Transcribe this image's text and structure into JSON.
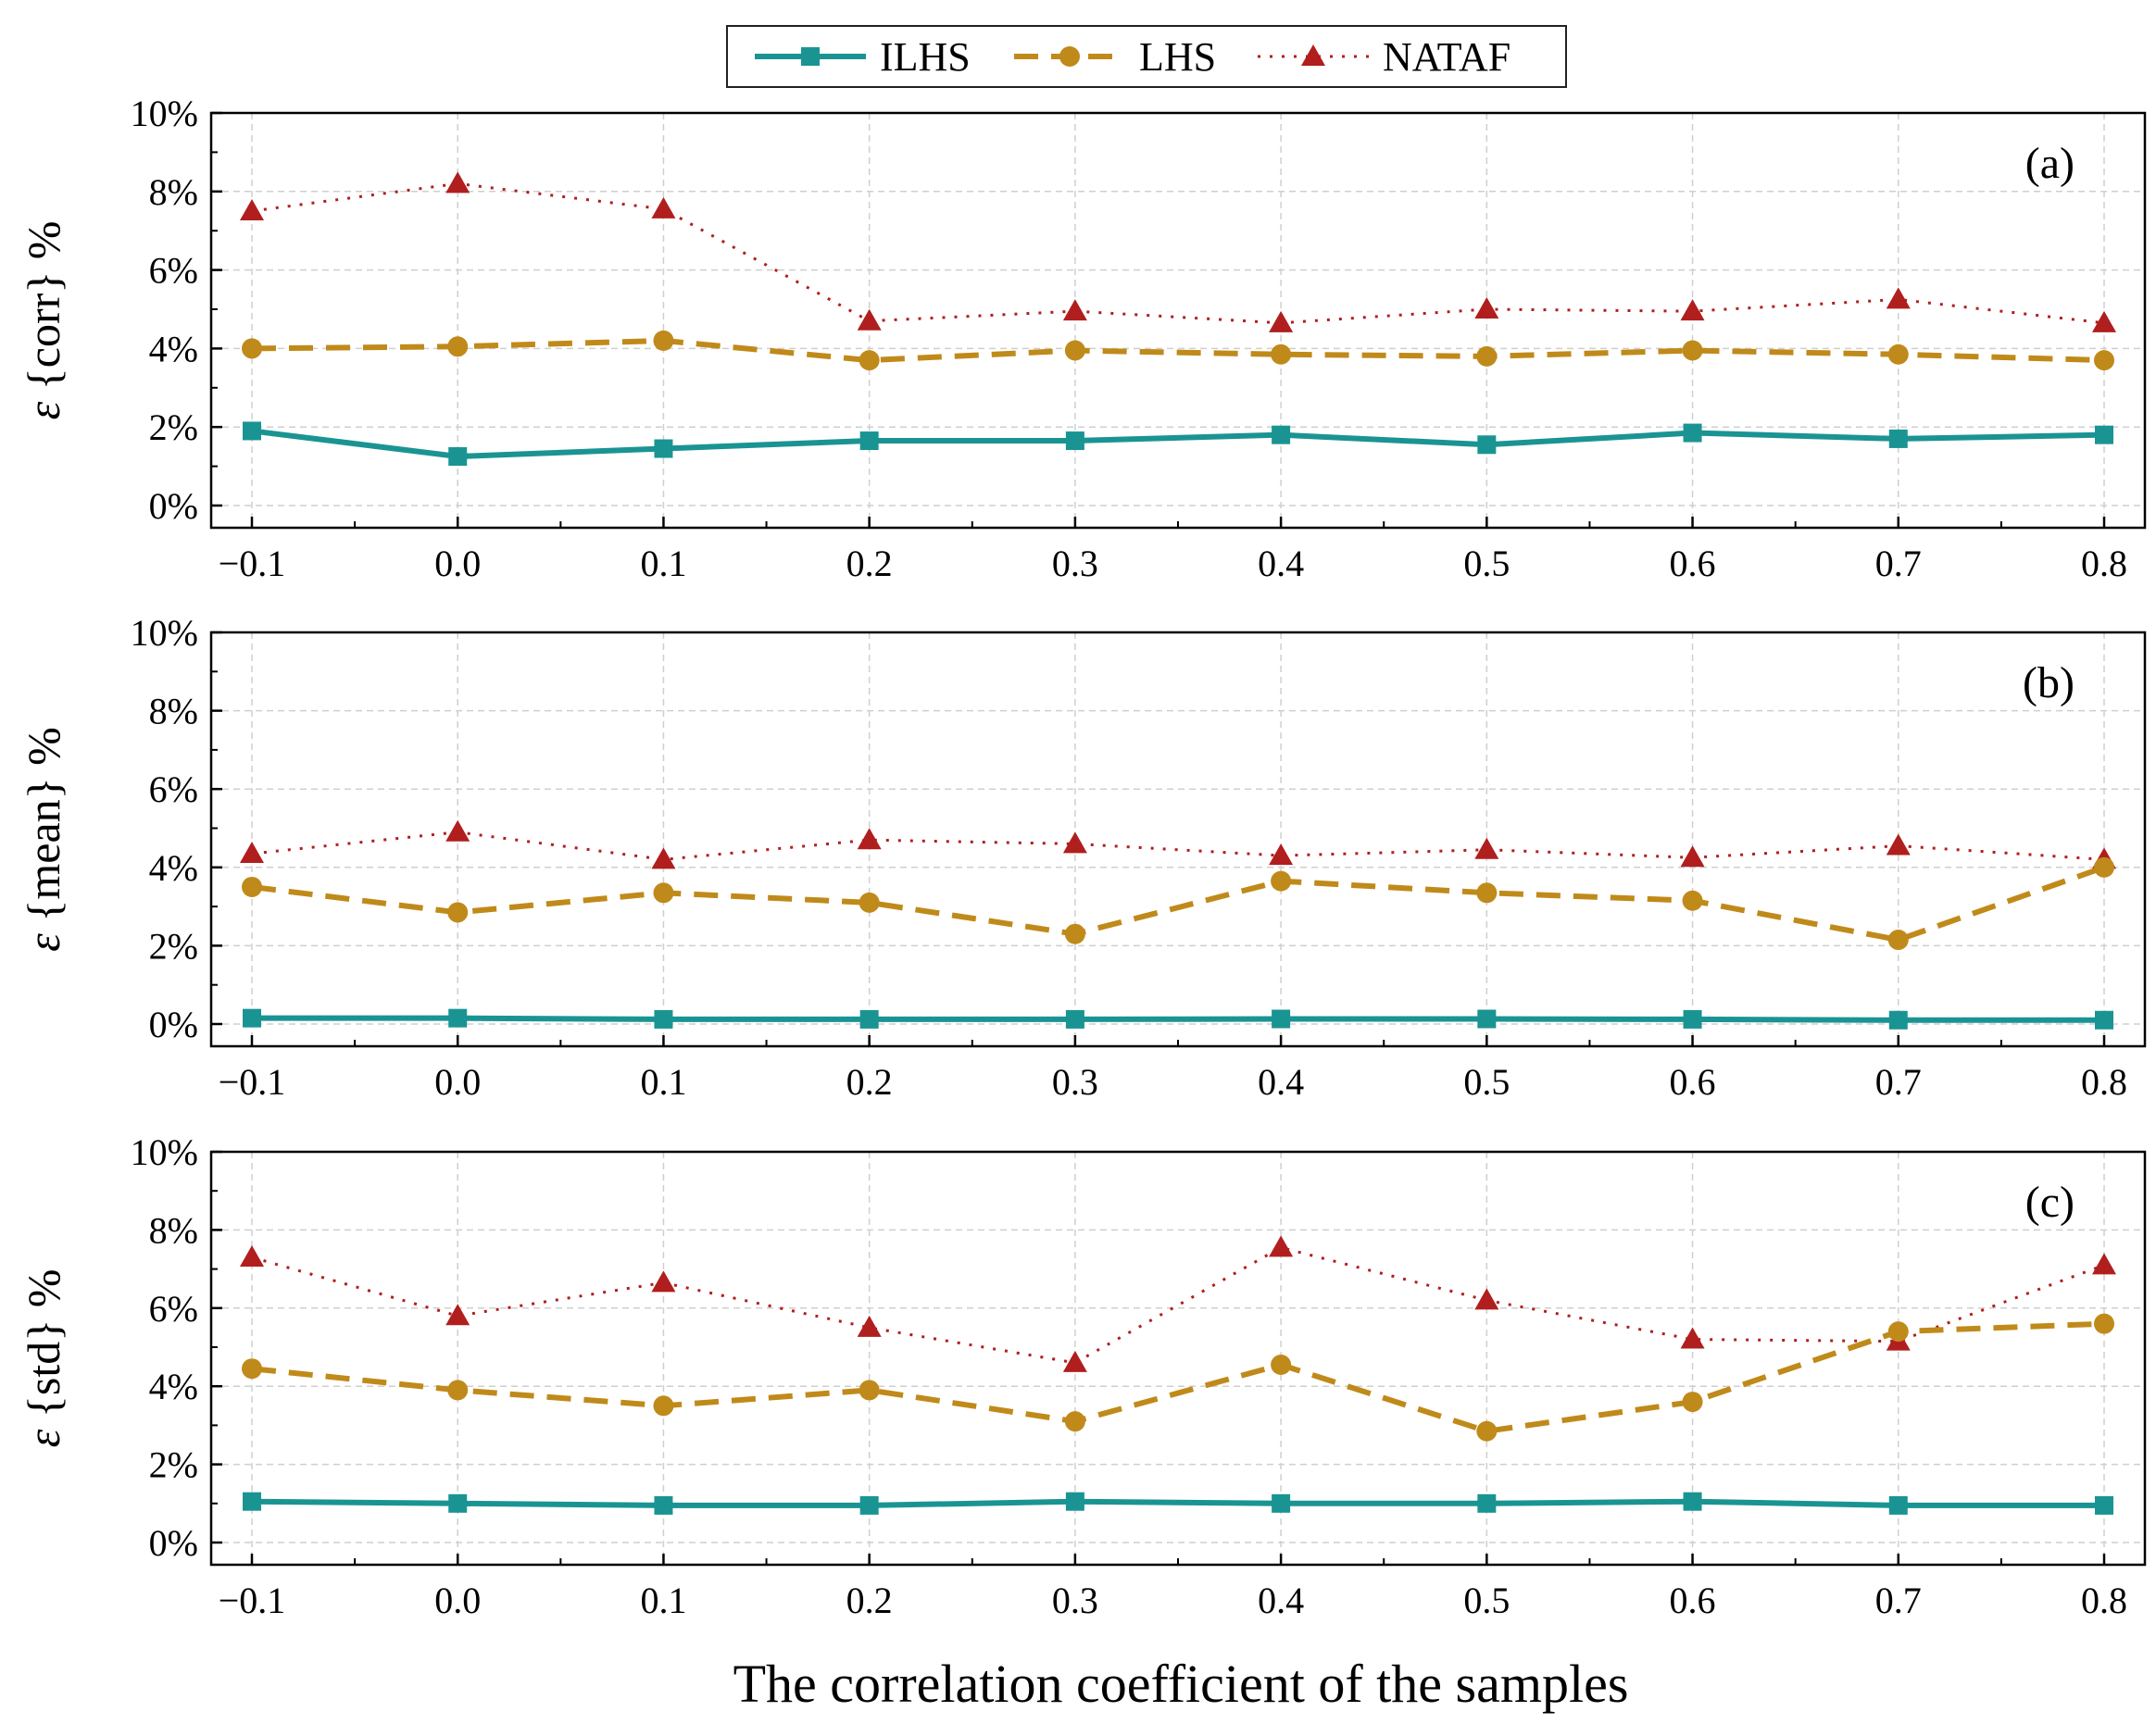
{
  "chart_data": {
    "type": "line",
    "xlabel": "The correlation coefficient of the samples",
    "x": [
      -0.1,
      0.0,
      0.1,
      0.2,
      0.3,
      0.4,
      0.5,
      0.6,
      0.7,
      0.8
    ],
    "x_tick_labels": [
      "−0.1",
      "0.0",
      "0.1",
      "0.2",
      "0.3",
      "0.4",
      "0.5",
      "0.6",
      "0.7",
      "0.8"
    ],
    "y_tick_labels": [
      "0%",
      "2%",
      "4%",
      "6%",
      "8%",
      "10%"
    ],
    "ylim": [
      0,
      10
    ],
    "grid": true,
    "legend": {
      "placement": "top-center",
      "entries": [
        {
          "name": "ILHS",
          "color": "#1a9493",
          "style": "solid",
          "marker": "square"
        },
        {
          "name": "LHS",
          "color": "#c08a1a",
          "style": "dashed",
          "marker": "circle"
        },
        {
          "name": "NATAF",
          "color": "#b11e1e",
          "style": "dotted",
          "marker": "triangle"
        }
      ]
    },
    "panels": [
      {
        "tag": "(a)",
        "ylabel_symbol": "ε",
        "ylabel_text": "{corr} %",
        "series": [
          {
            "name": "ILHS",
            "values": [
              1.9,
              1.25,
              1.45,
              1.65,
              1.65,
              1.8,
              1.55,
              1.85,
              1.7,
              1.8
            ]
          },
          {
            "name": "LHS",
            "values": [
              4.0,
              4.05,
              4.2,
              3.7,
              3.95,
              3.85,
              3.8,
              3.95,
              3.85,
              3.7
            ]
          },
          {
            "name": "NATAF",
            "values": [
              7.5,
              8.2,
              7.55,
              4.7,
              4.95,
              4.65,
              5.0,
              4.95,
              5.25,
              4.65
            ]
          }
        ]
      },
      {
        "tag": "(b)",
        "ylabel_symbol": "ε",
        "ylabel_text": "{mean} %",
        "series": [
          {
            "name": "ILHS",
            "values": [
              0.15,
              0.15,
              0.12,
              0.12,
              0.12,
              0.13,
              0.13,
              0.12,
              0.1,
              0.1
            ]
          },
          {
            "name": "LHS",
            "values": [
              3.5,
              2.85,
              3.35,
              3.1,
              2.3,
              3.65,
              3.35,
              3.15,
              2.15,
              4.0
            ]
          },
          {
            "name": "NATAF",
            "values": [
              4.35,
              4.9,
              4.2,
              4.7,
              4.6,
              4.3,
              4.45,
              4.25,
              4.55,
              4.2
            ]
          }
        ]
      },
      {
        "tag": "(c)",
        "ylabel_symbol": "ε",
        "ylabel_text": "{std} %",
        "series": [
          {
            "name": "ILHS",
            "values": [
              1.05,
              1.0,
              0.95,
              0.95,
              1.05,
              1.0,
              1.0,
              1.05,
              0.95,
              0.95
            ]
          },
          {
            "name": "LHS",
            "values": [
              4.45,
              3.9,
              3.5,
              3.9,
              3.1,
              4.55,
              2.85,
              3.6,
              5.4,
              5.6
            ]
          },
          {
            "name": "NATAF",
            "values": [
              7.3,
              5.8,
              6.65,
              5.5,
              4.6,
              7.55,
              6.2,
              5.2,
              5.15,
              7.1
            ]
          }
        ]
      }
    ]
  }
}
